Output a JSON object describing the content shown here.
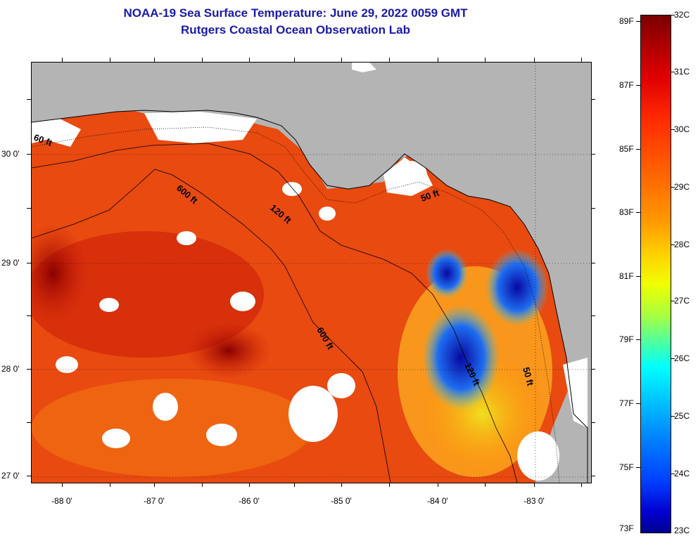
{
  "title": {
    "line1": "NOAA-19 Sea Surface Temperature:  June 29, 2022 0059 GMT",
    "line2": "Rutgers Coastal Ocean Observation Lab"
  },
  "map": {
    "lat_labels": [
      "30 0'",
      "29 0'",
      "28 0'",
      "27 0'"
    ],
    "lon_labels": [
      "-88 0'",
      "-87 0'",
      "-86 0'",
      "-85 0'",
      "-84 0'",
      "-83 0'"
    ],
    "contour_labels": [
      "60 ft",
      "600 ft",
      "120 ft",
      "50 ft",
      "600 ft",
      "120 ft",
      "50 ft"
    ],
    "colors": {
      "land": "#b4b4b4",
      "cloud": "#ffffff",
      "warm": "#e83a10",
      "hot": "#a00808",
      "cold": "#0a0aa0"
    }
  },
  "colorbar": {
    "fahrenheit": [
      "89F",
      "87F",
      "85F",
      "83F",
      "81F",
      "79F",
      "77F",
      "75F",
      "73F"
    ],
    "celsius": [
      "32C",
      "31C",
      "30C",
      "29C",
      "28C",
      "27C",
      "26C",
      "25C",
      "24C",
      "23C"
    ]
  }
}
